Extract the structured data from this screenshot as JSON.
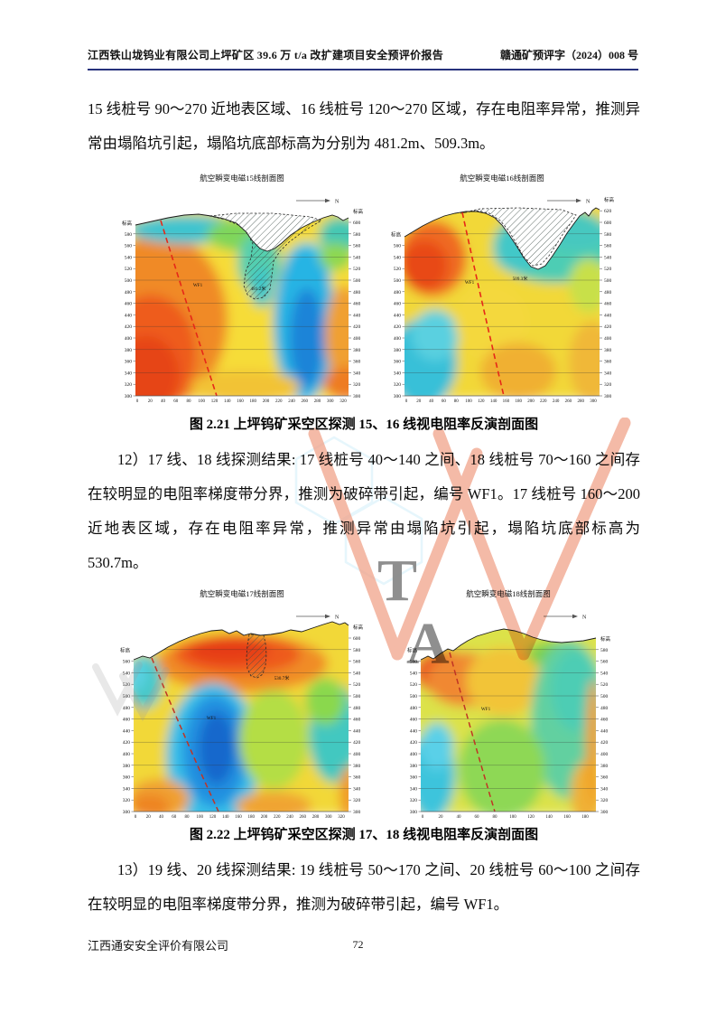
{
  "header": {
    "left": "江西铁山垅钨业有限公司上坪矿区 39.6 万 t/a 改扩建项目安全预评价报告",
    "right": "赣通矿预评字（2024）008 号"
  },
  "paragraphs": {
    "p11": "15 线桩号 90～270 近地表区域、16 线桩号 120～270 区域，存在电阻率异常，推测异常由塌陷坑引起，塌陷坑底部标高为分别为 481.2m、509.3m。",
    "p12": "12）17 线、18 线探测结果: 17 线桩号 40～140 之间、18 线桩号 70～160 之间存在较明显的电阻率梯度带分界，推测为破碎带引起，编号 WF1。17 线桩号 160～200 近地表区域，存在电阻率异常，推测异常由塌陷坑引起，塌陷坑底部标高为 530.7m。",
    "p13": "13）19 线、20 线探测结果: 19 线桩号 50～170 之间、20 线桩号 60～100 之间存在较明显的电阻率梯度带分界，推测为破碎带引起，编号 WF1。"
  },
  "figures": {
    "fig221_caption": "图 2.21 上坪钨矿采空区探测 15、16 线视电阻率反演剖面图",
    "fig222_caption": "图 2.22 上坪钨矿采空区探测 17、18 线视电阻率反演剖面图"
  },
  "footer": {
    "company": "江西通安安全评价有限公司",
    "page_number": "72"
  },
  "watermark": {
    "letter_t": "T",
    "letter_a": "A",
    "orange": "#e4582b",
    "blue": "#8ed9f0"
  },
  "chart_data": [
    {
      "type": "heatmap",
      "title": "航空瞬变电磁15线剖面图",
      "elev_axis_label": "标高",
      "north_label": "N",
      "fault_label": "WF1",
      "collapse_annotation": "481.2米",
      "xlim": [
        0,
        320
      ],
      "ylim": [
        300,
        600
      ],
      "x_ticks": [
        0,
        20,
        40,
        60,
        80,
        100,
        120,
        140,
        160,
        180,
        200,
        220,
        240,
        260,
        280,
        300,
        320
      ],
      "y_ticks_left": [
        580,
        560,
        540,
        520,
        500,
        480,
        460,
        440,
        420,
        400,
        380,
        360,
        340,
        320,
        300
      ],
      "y_ticks_right": [
        600,
        580,
        560,
        540,
        520,
        500,
        480,
        460,
        440,
        420,
        400,
        380,
        360,
        340,
        320,
        300
      ],
      "colors": {
        "high_resistivity": "#e64414",
        "mid": "#f6dc38",
        "low_resistivity": "#1b84d8"
      }
    },
    {
      "type": "heatmap",
      "title": "航空瞬变电磁16线剖面图",
      "elev_axis_label": "标高",
      "north_label": "N",
      "fault_label": "WF1",
      "collapse_annotation": "509.3米",
      "xlim": [
        0,
        300
      ],
      "ylim": [
        300,
        620
      ],
      "x_ticks": [
        0,
        20,
        40,
        60,
        80,
        100,
        120,
        140,
        160,
        180,
        200,
        220,
        240,
        260,
        280,
        300
      ],
      "y_ticks_left": [
        560,
        540,
        520,
        500,
        480,
        460,
        440,
        420,
        400,
        380,
        360,
        340,
        320,
        300
      ],
      "y_ticks_right": [
        620,
        600,
        580,
        560,
        540,
        520,
        500,
        480,
        460,
        440,
        420,
        400,
        380,
        360,
        340,
        320,
        300
      ],
      "colors": {
        "high_resistivity": "#e84818",
        "mid": "#f2d838",
        "low_resistivity": "#38c0d8"
      }
    },
    {
      "type": "heatmap",
      "title": "航空瞬变电磁17线剖面图",
      "elev_axis_label": "标高",
      "north_label": "N",
      "fault_label": "WF1",
      "collapse_annotation": "530.7米",
      "xlim": [
        0,
        320
      ],
      "ylim": [
        300,
        600
      ],
      "x_ticks": [
        0,
        20,
        40,
        60,
        80,
        100,
        120,
        140,
        160,
        180,
        200,
        220,
        240,
        260,
        280,
        300,
        320
      ],
      "y_ticks_left": [
        560,
        540,
        520,
        500,
        480,
        460,
        440,
        420,
        400,
        380,
        360,
        340,
        320,
        300
      ],
      "y_ticks_right": [
        600,
        580,
        560,
        540,
        520,
        500,
        480,
        460,
        440,
        420,
        400,
        380,
        360,
        340,
        320,
        300
      ],
      "colors": {
        "high_resistivity": "#e63c12",
        "mid": "#f2d838",
        "low_resistivity": "#1668cc"
      }
    },
    {
      "type": "heatmap",
      "title": "航空瞬变电磁18线剖面图",
      "elev_axis_label": "标高",
      "north_label": "N",
      "fault_label": "WF1",
      "collapse_annotation": null,
      "xlim": [
        0,
        180
      ],
      "ylim": [
        300,
        580
      ],
      "x_ticks": [
        0,
        20,
        40,
        60,
        80,
        100,
        120,
        140,
        160,
        180
      ],
      "y_ticks_left": [
        560,
        540,
        520,
        500,
        480,
        460,
        440,
        420,
        400,
        380,
        360,
        340,
        320,
        300
      ],
      "y_ticks_right": [
        580,
        560,
        540,
        520,
        500,
        480,
        460,
        440,
        420,
        400,
        380,
        360,
        340,
        320,
        300
      ],
      "colors": {
        "high_resistivity": "#ea5520",
        "mid": "#dce24a",
        "low_resistivity": "#3cc4dc"
      }
    }
  ]
}
